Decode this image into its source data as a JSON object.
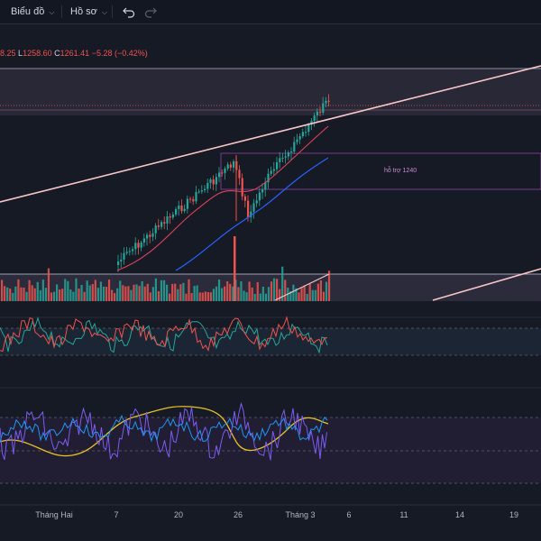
{
  "toolbar": {
    "chart_menu": "Biểu đồ",
    "profile_menu": "Hồ sơ"
  },
  "ohlc": {
    "high_partial": "8.25",
    "low_key": "L",
    "low": "1258.60",
    "close_key": "C",
    "close": "1261.41",
    "change": "−5.28 (−0.42%)"
  },
  "note_label": "hỗ trợ 1240",
  "x_axis": {
    "labels": [
      "Tháng Hai",
      "7",
      "20",
      "26",
      "Tháng 3",
      "6",
      "11",
      "14",
      "19"
    ]
  },
  "colors": {
    "background": "#161a25",
    "up": "#26a69a",
    "down": "#ef5350",
    "trendline": "#f8c6c8",
    "ma_fast": "#e0435a",
    "ma_slow": "#2962ff",
    "note": "#c98ad6"
  },
  "icons": [
    "chevron-down-icon",
    "undo-icon",
    "redo-icon"
  ]
}
